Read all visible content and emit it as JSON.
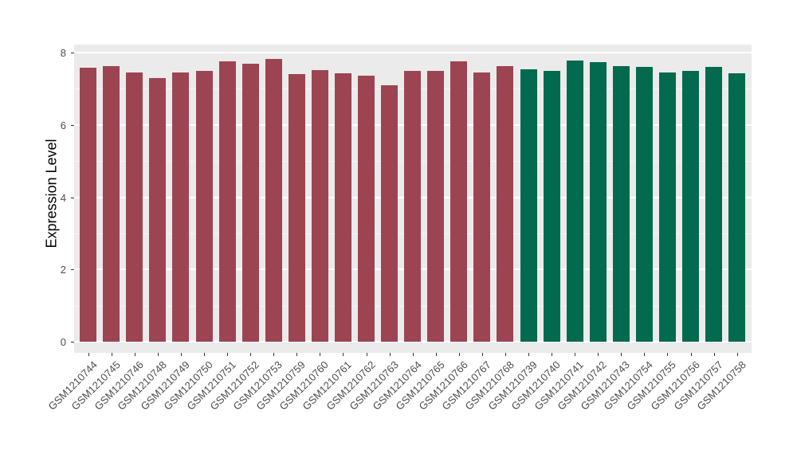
{
  "chart_data": {
    "type": "bar",
    "title": "",
    "xlabel": "",
    "ylabel": "Expression Level",
    "ylim": [
      0,
      8.4
    ],
    "yticks": [
      0,
      2,
      4,
      6,
      8
    ],
    "yticks_minor": [
      1,
      3,
      5,
      7
    ],
    "grid": "on",
    "legend": "none",
    "panel_background": "#EBEBEB",
    "group_colors": {
      "group1": "#9D4452",
      "group2": "#026A4E"
    },
    "categories": [
      "GSM1210744",
      "GSM1210745",
      "GSM1210746",
      "GSM1210748",
      "GSM1210749",
      "GSM1210750",
      "GSM1210751",
      "GSM1210752",
      "GSM1210753",
      "GSM1210759",
      "GSM1210760",
      "GSM1210761",
      "GSM1210762",
      "GSM1210763",
      "GSM1210764",
      "GSM1210765",
      "GSM1210766",
      "GSM1210767",
      "GSM1210768",
      "GSM1210739",
      "GSM1210740",
      "GSM1210741",
      "GSM1210742",
      "GSM1210743",
      "GSM1210754",
      "GSM1210755",
      "GSM1210756",
      "GSM1210757",
      "GSM1210758"
    ],
    "values": [
      7.59,
      7.63,
      7.46,
      7.29,
      7.46,
      7.49,
      7.76,
      7.69,
      7.82,
      7.41,
      7.52,
      7.43,
      7.35,
      7.1,
      7.5,
      7.49,
      7.76,
      7.45,
      7.62,
      7.53,
      7.5,
      7.77,
      7.73,
      7.63,
      7.6,
      7.45,
      7.5,
      7.6,
      7.42
    ],
    "bar_groups": [
      "group1",
      "group1",
      "group1",
      "group1",
      "group1",
      "group1",
      "group1",
      "group1",
      "group1",
      "group1",
      "group1",
      "group1",
      "group1",
      "group1",
      "group1",
      "group1",
      "group1",
      "group1",
      "group1",
      "group2",
      "group2",
      "group2",
      "group2",
      "group2",
      "group2",
      "group2",
      "group2",
      "group2",
      "group2"
    ]
  }
}
